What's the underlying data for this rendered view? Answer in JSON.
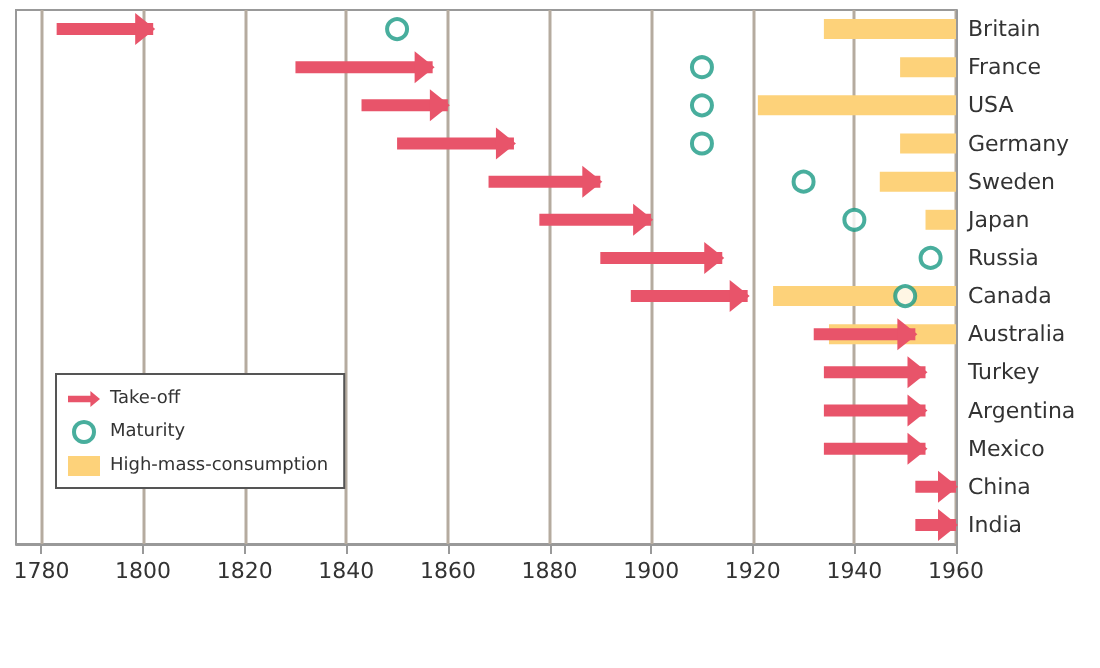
{
  "chart_data": {
    "type": "bar",
    "orientation": "horizontal",
    "categories": [
      "Britain",
      "France",
      "USA",
      "Germany",
      "Sweden",
      "Japan",
      "Russia",
      "Canada",
      "Australia",
      "Turkey",
      "Argentina",
      "Mexico",
      "China",
      "India"
    ],
    "series": [
      {
        "name": "Take-off",
        "color": "#e8546a",
        "base": [
          1783,
          1830,
          1843,
          1850,
          1868,
          1878,
          1890,
          1896,
          1932,
          1934,
          1934,
          1934,
          1952,
          1952
        ],
        "values": [
          19,
          27,
          17,
          23,
          22,
          22,
          24,
          23,
          20,
          20,
          20,
          20,
          8,
          8
        ]
      },
      {
        "name": "Maturity",
        "type": "scatter",
        "marker": "circle",
        "color": "#1a9a85",
        "values": [
          1850,
          1910,
          1910,
          1910,
          1930,
          1940,
          1955,
          1950,
          null,
          null,
          null,
          null,
          null,
          null
        ]
      },
      {
        "name": "High-mass-consumption",
        "color": "#fdd27a",
        "base": [
          1934,
          1949,
          1921,
          1949,
          1945,
          1954,
          null,
          1924,
          1935,
          null,
          null,
          null,
          null,
          null
        ],
        "values": [
          26,
          11,
          39,
          11,
          15,
          6,
          null,
          36,
          25,
          null,
          null,
          null,
          null,
          null
        ]
      }
    ],
    "xlim": [
      1775,
      1960
    ],
    "xticks": [
      1780,
      1800,
      1820,
      1840,
      1860,
      1880,
      1900,
      1920,
      1940,
      1960
    ],
    "grid": "x",
    "legend": "bottom left"
  }
}
